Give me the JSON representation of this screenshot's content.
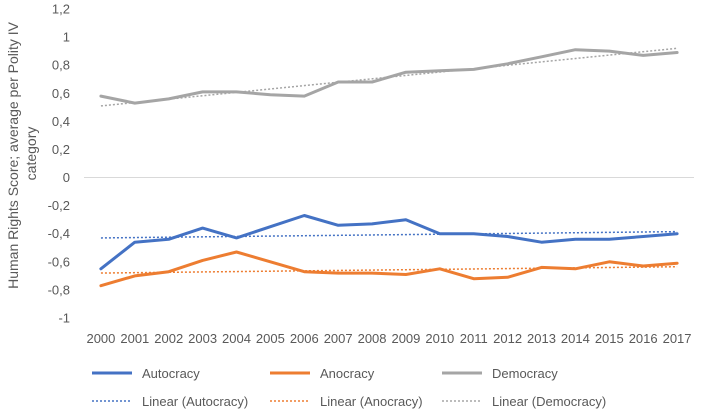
{
  "chart_data": {
    "type": "line",
    "title": "",
    "xlabel": "",
    "ylabel": "Human Rights Score; average per Polity IV category",
    "ylabel_lines": [
      "Human Rights Score; average per Polity IV",
      "category"
    ],
    "ylim": [
      -1,
      1.2
    ],
    "yticks": [
      -1,
      -0.8,
      -0.6,
      -0.4,
      -0.2,
      0,
      0.2,
      0.4,
      0.6,
      0.8,
      1,
      1.2
    ],
    "ytick_labels": [
      "-1",
      "-0,8",
      "-0,6",
      "-0,4",
      "-0,2",
      "0",
      "0,2",
      "0,4",
      "0,6",
      "0,8",
      "1",
      "1,2"
    ],
    "categories": [
      "2000",
      "2001",
      "2002",
      "2003",
      "2004",
      "2005",
      "2006",
      "2007",
      "2008",
      "2009",
      "2010",
      "2011",
      "2012",
      "2013",
      "2014",
      "2015",
      "2016",
      "2017"
    ],
    "series": [
      {
        "name": "Autocracy",
        "color": "#4472C4",
        "values": [
          -0.65,
          -0.46,
          -0.44,
          -0.36,
          -0.43,
          -0.35,
          -0.27,
          -0.34,
          -0.33,
          -0.3,
          -0.4,
          -0.4,
          -0.42,
          -0.46,
          -0.44,
          -0.44,
          -0.42,
          -0.4
        ]
      },
      {
        "name": "Anocracy",
        "color": "#ED7D31",
        "values": [
          -0.77,
          -0.7,
          -0.67,
          -0.59,
          -0.53,
          -0.6,
          -0.67,
          -0.68,
          -0.68,
          -0.69,
          -0.65,
          -0.72,
          -0.71,
          -0.64,
          -0.65,
          -0.6,
          -0.63,
          -0.61
        ]
      },
      {
        "name": "Democracy",
        "color": "#A5A5A5",
        "values": [
          0.58,
          0.53,
          0.56,
          0.61,
          0.61,
          0.59,
          0.58,
          0.68,
          0.68,
          0.75,
          0.76,
          0.77,
          0.81,
          0.86,
          0.91,
          0.9,
          0.87,
          0.89
        ]
      }
    ],
    "trendlines": [
      {
        "name": "Linear (Autocracy)",
        "color": "#4472C4",
        "start": -0.43,
        "end": -0.385
      },
      {
        "name": "Linear (Anocracy)",
        "color": "#ED7D31",
        "start": -0.68,
        "end": -0.635
      },
      {
        "name": "Linear (Democracy)",
        "color": "#A5A5A5",
        "start": 0.51,
        "end": 0.92
      }
    ],
    "legend_position": "bottom"
  }
}
